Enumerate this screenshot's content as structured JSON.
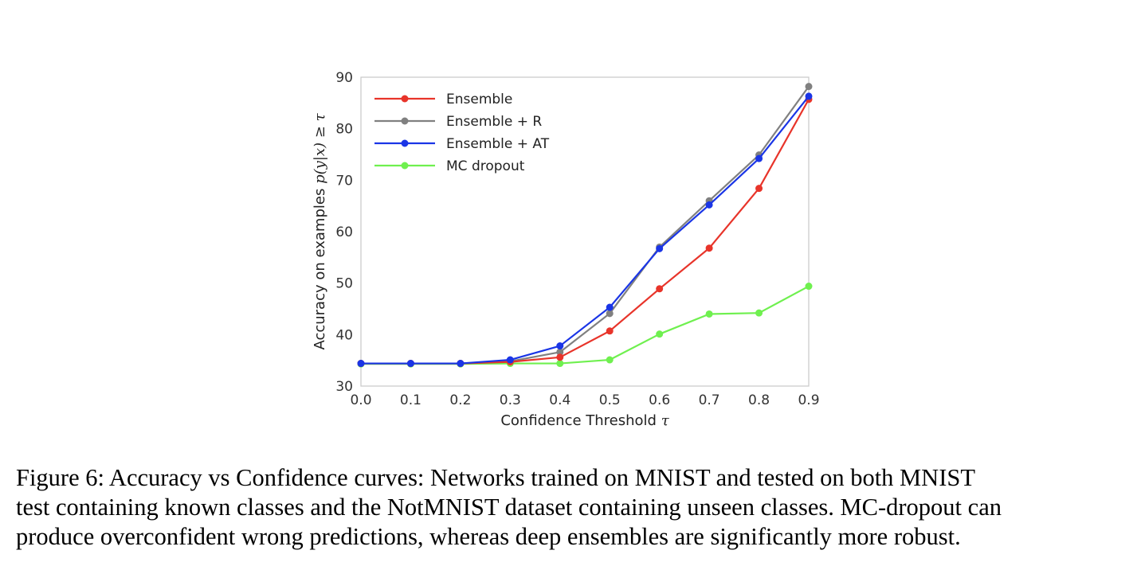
{
  "chart_data": {
    "type": "line",
    "x": [
      0.0,
      0.1,
      0.2,
      0.3,
      0.4,
      0.5,
      0.6,
      0.7,
      0.8,
      0.9
    ],
    "series": [
      {
        "name": "Ensemble",
        "color": "#e8342a",
        "values": [
          34.4,
          34.4,
          34.4,
          34.7,
          35.6,
          40.7,
          48.9,
          56.8,
          68.4,
          85.7
        ]
      },
      {
        "name": "Ensemble + R",
        "color": "#808080",
        "values": [
          34.4,
          34.4,
          34.4,
          34.8,
          36.6,
          44.1,
          57.0,
          66.0,
          74.9,
          88.2
        ]
      },
      {
        "name": "Ensemble + AT",
        "color": "#1a35e6",
        "values": [
          34.4,
          34.4,
          34.4,
          35.1,
          37.8,
          45.3,
          56.7,
          65.2,
          74.2,
          86.3
        ]
      },
      {
        "name": "MC dropout",
        "color": "#6ff04f",
        "values": [
          34.3,
          34.3,
          34.3,
          34.4,
          34.4,
          35.1,
          40.1,
          44.0,
          44.2,
          49.4
        ]
      }
    ],
    "xlim": [
      0.0,
      0.9
    ],
    "ylim": [
      30,
      90
    ],
    "xticks": [
      "0.0",
      "0.1",
      "0.2",
      "0.3",
      "0.4",
      "0.5",
      "0.6",
      "0.7",
      "0.8",
      "0.9"
    ],
    "yticks": [
      "30",
      "40",
      "50",
      "60",
      "70",
      "80",
      "90"
    ],
    "xlabel": "Confidence Threshold",
    "xlabel_math": "τ",
    "ylabel": "Accuracy on examples",
    "ylabel_math": "p(y|x) ≥ τ",
    "legend_position": "top-left",
    "grid": false
  },
  "caption": {
    "line1": "Figure 6: Accuracy vs Confidence curves: Networks trained on MNIST and tested on both MNIST",
    "line2": "test containing known classes and the NotMNIST dataset containing unseen classes. MC-dropout can",
    "line3": "produce overconfident wrong predictions, whereas deep ensembles are significantly more robust."
  }
}
